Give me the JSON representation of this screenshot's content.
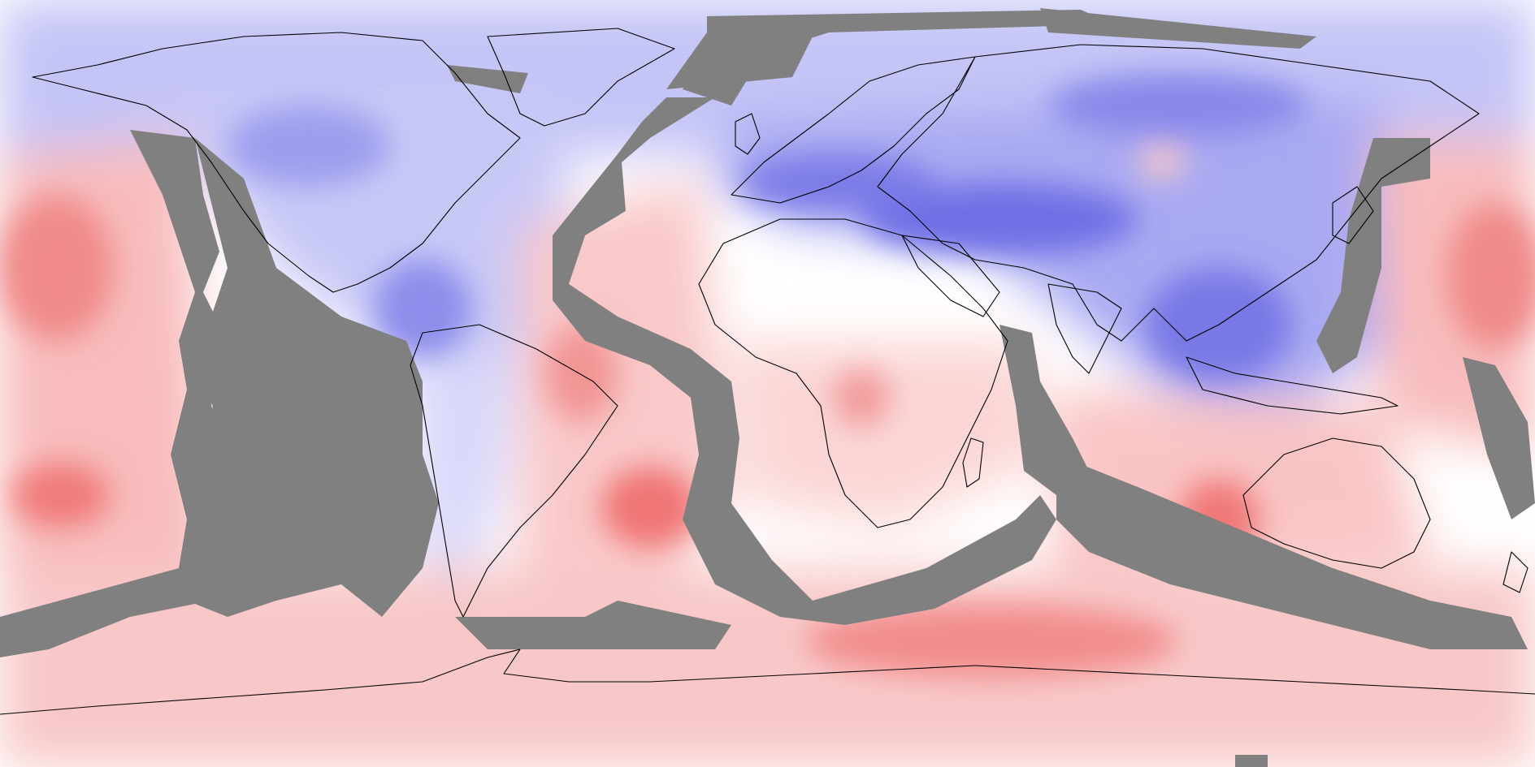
{
  "map": {
    "projection": "equirectangular",
    "extent": {
      "lon": [
        -180,
        180
      ],
      "lat": [
        -90,
        90
      ]
    },
    "colors": {
      "background": "#ffffff",
      "cold_light": "#dcdcfa",
      "cold_mid": "#b4b4f5",
      "cold_dark": "#6a6ae6",
      "warm_light": "#fbdcdc",
      "warm_mid": "#f7b4b4",
      "warm_dark": "#f07070",
      "mask": "#808080",
      "coastline": "#000000"
    },
    "layers": [
      "anomaly-shading",
      "missing-data-mask",
      "coastlines"
    ]
  }
}
